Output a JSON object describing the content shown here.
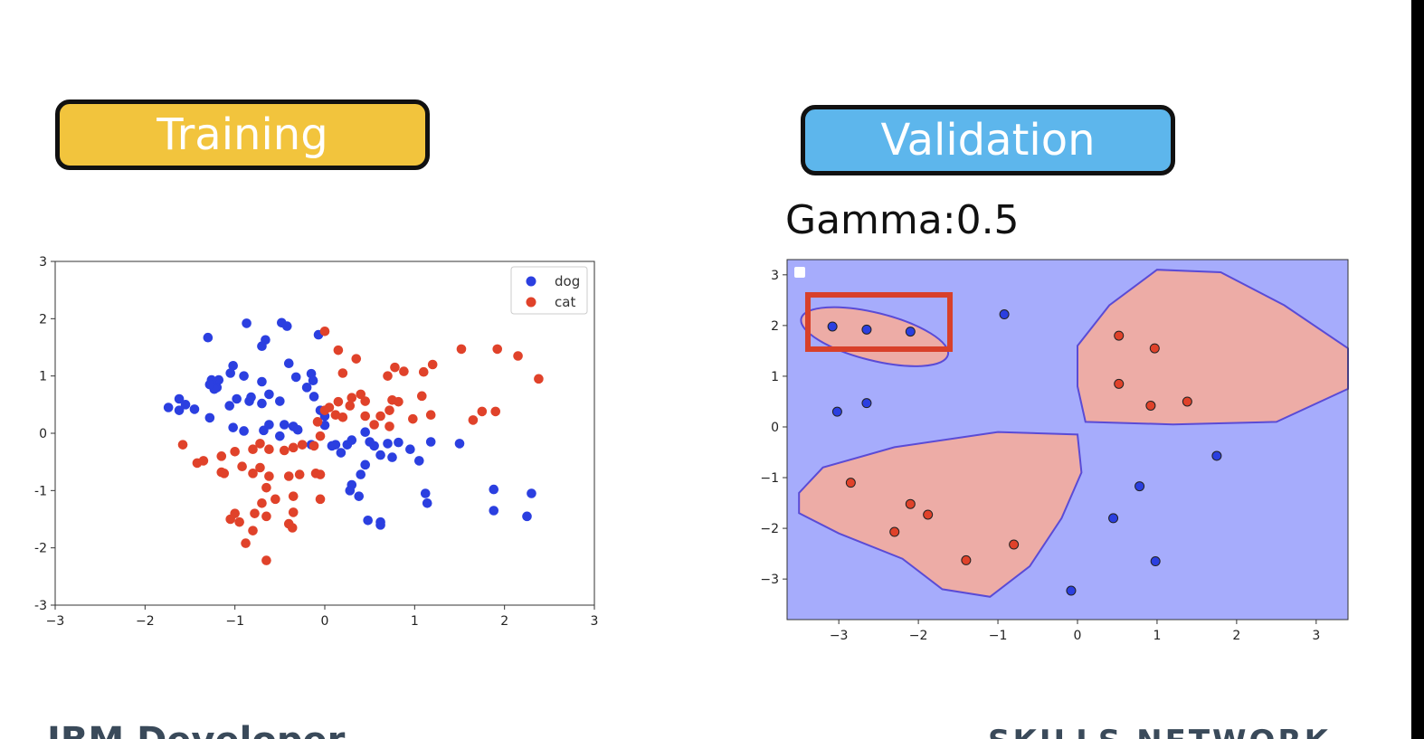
{
  "slide": {
    "training_label": "Training",
    "validation_label": "Validation",
    "gamma_label": "Gamma:0.5",
    "footer_left": "IBM Developer",
    "footer_right": "SKILLS NETWORK"
  },
  "colors": {
    "dog": "#2B3FE0",
    "cat": "#E0422A",
    "region_dog": "#A6ACFC",
    "region_cat": "#EDACA6",
    "boundary": "#5A4BD6",
    "highlight": "#D8402A"
  },
  "chart_data": [
    {
      "type": "scatter",
      "xlim": [
        -3,
        3
      ],
      "ylim": [
        -3,
        3
      ],
      "xticks": [
        "−3",
        "−2",
        "−1",
        "0",
        "1",
        "2",
        "3"
      ],
      "yticks": [
        "3",
        "2",
        "1",
        "0",
        "-1",
        "-2",
        "-3"
      ],
      "legend_position": "top-right",
      "series": [
        {
          "name": "dog",
          "color": "#2B3FE0",
          "points": [
            [
              -0.87,
              1.92
            ],
            [
              -0.48,
              1.93
            ],
            [
              -0.42,
              1.87
            ],
            [
              -0.66,
              1.63
            ],
            [
              -0.7,
              1.52
            ],
            [
              -1.3,
              1.67
            ],
            [
              -1.02,
              1.18
            ],
            [
              -1.05,
              1.05
            ],
            [
              -1.18,
              0.93
            ],
            [
              -1.26,
              0.93
            ],
            [
              -1.2,
              0.8
            ],
            [
              -1.23,
              0.77
            ],
            [
              -1.28,
              0.85
            ],
            [
              -0.9,
              1.0
            ],
            [
              -0.7,
              0.9
            ],
            [
              -0.4,
              1.22
            ],
            [
              -0.32,
              0.98
            ],
            [
              -0.15,
              1.04
            ],
            [
              -0.13,
              0.92
            ],
            [
              -0.07,
              1.72
            ],
            [
              -0.62,
              0.68
            ],
            [
              -0.82,
              0.63
            ],
            [
              -0.98,
              0.6
            ],
            [
              -0.84,
              0.56
            ],
            [
              -0.7,
              0.52
            ],
            [
              -0.5,
              0.56
            ],
            [
              -0.2,
              0.8
            ],
            [
              -0.12,
              0.64
            ],
            [
              -1.06,
              0.48
            ],
            [
              -1.45,
              0.42
            ],
            [
              -1.55,
              0.5
            ],
            [
              -1.62,
              0.6
            ],
            [
              -1.74,
              0.45
            ],
            [
              -1.62,
              0.4
            ],
            [
              -1.28,
              0.27
            ],
            [
              -1.02,
              0.1
            ],
            [
              -0.9,
              0.04
            ],
            [
              -0.68,
              0.05
            ],
            [
              -0.45,
              0.15
            ],
            [
              -0.35,
              0.12
            ],
            [
              -0.3,
              0.06
            ],
            [
              -0.5,
              -0.05
            ],
            [
              -0.62,
              0.15
            ],
            [
              -0.05,
              0.4
            ],
            [
              0.0,
              0.3
            ],
            [
              0.0,
              0.14
            ],
            [
              0.08,
              -0.22
            ],
            [
              0.18,
              -0.34
            ],
            [
              0.25,
              -0.2
            ],
            [
              0.3,
              -0.12
            ],
            [
              0.45,
              0.02
            ],
            [
              0.5,
              -0.15
            ],
            [
              0.55,
              -0.22
            ],
            [
              0.7,
              -0.18
            ],
            [
              0.75,
              -0.42
            ],
            [
              0.82,
              -0.16
            ],
            [
              0.95,
              -0.28
            ],
            [
              1.05,
              -0.48
            ],
            [
              1.18,
              -0.15
            ],
            [
              1.5,
              -0.18
            ],
            [
              0.62,
              -0.38
            ],
            [
              0.45,
              -0.55
            ],
            [
              0.4,
              -0.72
            ],
            [
              0.3,
              -0.9
            ],
            [
              0.28,
              -1.0
            ],
            [
              0.38,
              -1.1
            ],
            [
              1.12,
              -1.05
            ],
            [
              1.14,
              -1.22
            ],
            [
              1.88,
              -0.98
            ],
            [
              1.88,
              -1.35
            ],
            [
              2.3,
              -1.05
            ],
            [
              2.25,
              -1.45
            ],
            [
              0.48,
              -1.52
            ],
            [
              0.62,
              -1.55
            ],
            [
              0.62,
              -1.6
            ],
            [
              0.12,
              -0.2
            ],
            [
              -0.15,
              -0.2
            ]
          ]
        },
        {
          "name": "cat",
          "color": "#E0422A",
          "points": [
            [
              0.0,
              1.78
            ],
            [
              0.15,
              1.45
            ],
            [
              0.2,
              1.05
            ],
            [
              0.35,
              1.3
            ],
            [
              0.7,
              1.0
            ],
            [
              0.78,
              1.15
            ],
            [
              0.88,
              1.08
            ],
            [
              1.1,
              1.07
            ],
            [
              1.2,
              1.2
            ],
            [
              1.52,
              1.47
            ],
            [
              1.92,
              1.47
            ],
            [
              2.15,
              1.35
            ],
            [
              2.38,
              0.95
            ],
            [
              0.3,
              0.62
            ],
            [
              0.4,
              0.68
            ],
            [
              0.45,
              0.56
            ],
            [
              0.28,
              0.48
            ],
            [
              0.15,
              0.55
            ],
            [
              0.05,
              0.45
            ],
            [
              0.0,
              0.4
            ],
            [
              0.12,
              0.32
            ],
            [
              0.2,
              0.28
            ],
            [
              0.45,
              0.3
            ],
            [
              0.62,
              0.3
            ],
            [
              0.72,
              0.4
            ],
            [
              0.75,
              0.58
            ],
            [
              0.82,
              0.55
            ],
            [
              1.08,
              0.65
            ],
            [
              1.18,
              0.32
            ],
            [
              0.55,
              0.15
            ],
            [
              0.72,
              0.12
            ],
            [
              0.98,
              0.25
            ],
            [
              1.9,
              0.38
            ],
            [
              1.75,
              0.38
            ],
            [
              1.65,
              0.23
            ],
            [
              -0.08,
              0.2
            ],
            [
              -0.05,
              -0.05
            ],
            [
              -0.12,
              -0.22
            ],
            [
              -0.25,
              -0.2
            ],
            [
              -0.35,
              -0.25
            ],
            [
              -0.45,
              -0.3
            ],
            [
              -0.62,
              -0.28
            ],
            [
              -0.72,
              -0.18
            ],
            [
              -0.8,
              -0.28
            ],
            [
              -1.0,
              -0.32
            ],
            [
              -1.15,
              -0.4
            ],
            [
              -1.35,
              -0.48
            ],
            [
              -1.42,
              -0.52
            ],
            [
              -1.58,
              -0.2
            ],
            [
              -1.15,
              -0.68
            ],
            [
              -0.92,
              -0.58
            ],
            [
              -0.8,
              -0.7
            ],
            [
              -0.72,
              -0.6
            ],
            [
              -0.62,
              -0.75
            ],
            [
              -0.65,
              -0.95
            ],
            [
              -0.4,
              -0.75
            ],
            [
              -0.28,
              -0.72
            ],
            [
              -0.1,
              -0.7
            ],
            [
              -0.05,
              -0.72
            ],
            [
              -0.35,
              -1.1
            ],
            [
              -0.05,
              -1.15
            ],
            [
              -0.55,
              -1.15
            ],
            [
              -0.7,
              -1.22
            ],
            [
              -0.35,
              -1.38
            ],
            [
              -1.0,
              -1.4
            ],
            [
              -0.78,
              -1.4
            ],
            [
              -1.05,
              -1.5
            ],
            [
              -0.95,
              -1.55
            ],
            [
              -0.65,
              -1.45
            ],
            [
              -0.4,
              -1.58
            ],
            [
              -0.36,
              -1.65
            ],
            [
              -0.8,
              -1.7
            ],
            [
              -0.88,
              -1.92
            ],
            [
              -0.65,
              -2.22
            ],
            [
              -1.12,
              -0.7
            ]
          ]
        }
      ]
    },
    {
      "type": "scatter",
      "xlim": [
        -3.65,
        3.4
      ],
      "ylim": [
        -3.8,
        3.3
      ],
      "xticks": [
        "−3",
        "−2",
        "−1",
        "0",
        "1",
        "2",
        "3"
      ],
      "yticks": [
        "3",
        "2",
        "1",
        "0",
        "−1",
        "−2",
        "−3"
      ],
      "series": [
        {
          "color": "#2B3FE0",
          "points": [
            [
              -3.08,
              1.98
            ],
            [
              -2.65,
              1.92
            ],
            [
              -2.1,
              1.88
            ],
            [
              -0.92,
              2.22
            ],
            [
              -3.02,
              0.3
            ],
            [
              -2.65,
              0.47
            ],
            [
              1.75,
              -0.57
            ],
            [
              0.78,
              -1.17
            ],
            [
              0.45,
              -1.8
            ],
            [
              0.98,
              -2.65
            ],
            [
              -0.08,
              -3.23
            ]
          ]
        },
        {
          "color": "#E0422A",
          "points": [
            [
              0.52,
              1.8
            ],
            [
              0.97,
              1.55
            ],
            [
              0.52,
              0.85
            ],
            [
              0.92,
              0.42
            ],
            [
              1.38,
              0.5
            ],
            [
              -2.85,
              -1.1
            ],
            [
              -2.1,
              -1.52
            ],
            [
              -1.88,
              -1.73
            ],
            [
              -2.3,
              -2.07
            ],
            [
              -1.4,
              -2.63
            ],
            [
              -0.8,
              -2.32
            ]
          ]
        }
      ]
    }
  ]
}
